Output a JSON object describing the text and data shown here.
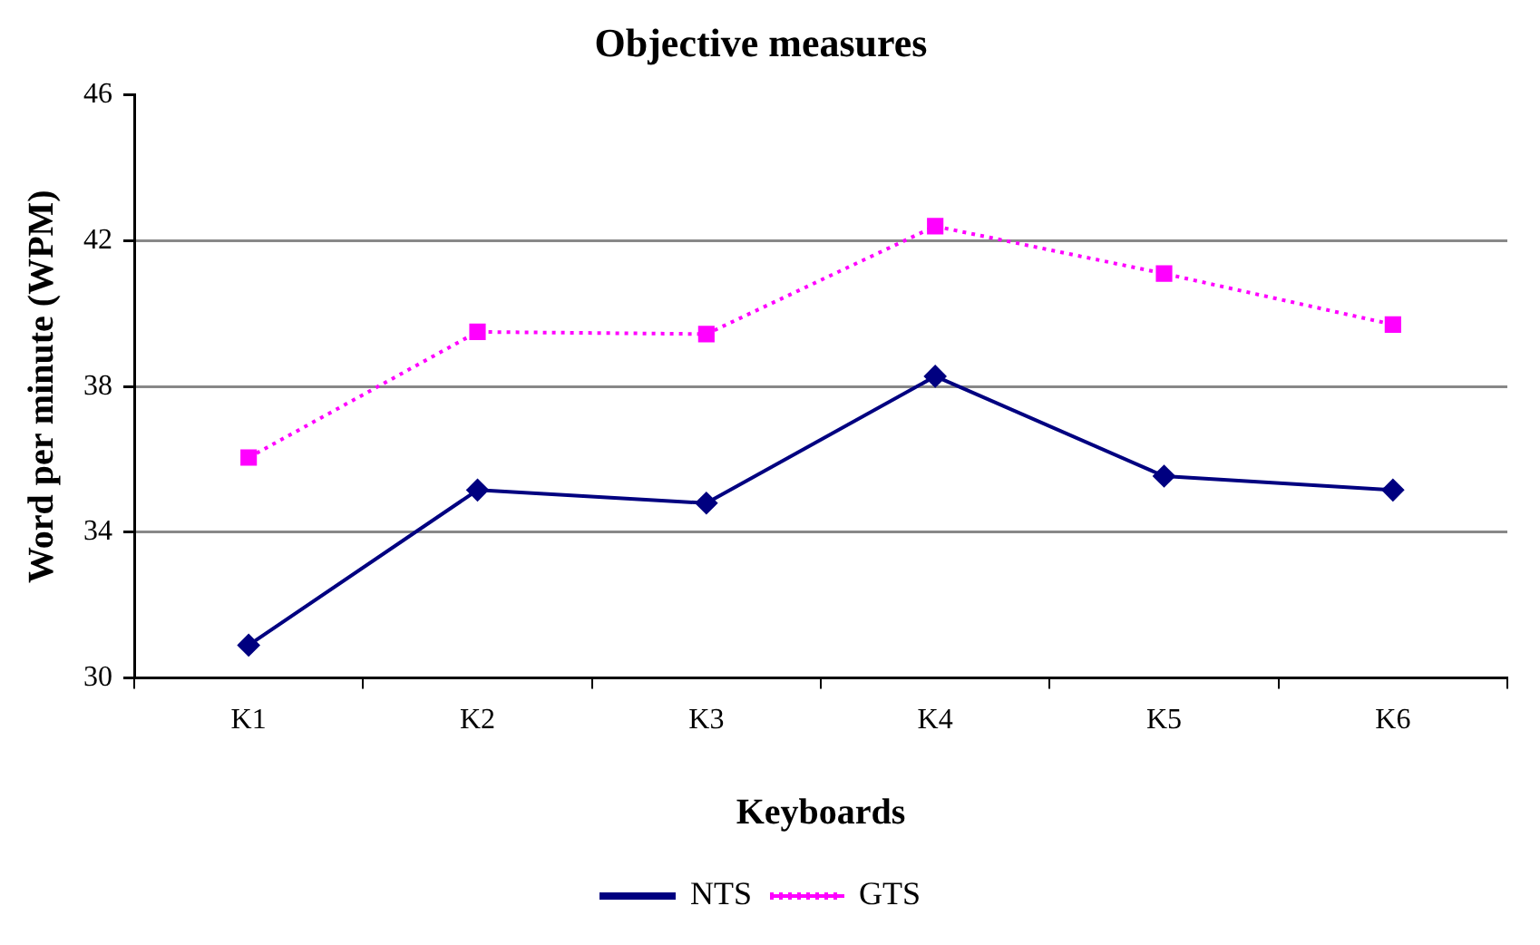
{
  "chart_data": {
    "type": "line",
    "title": "Objective measures",
    "xlabel": "Keyboards",
    "ylabel": "Word per minute (WPM)",
    "categories": [
      "K1",
      "K2",
      "K3",
      "K4",
      "K5",
      "K6"
    ],
    "series": [
      {
        "name": "NTS",
        "color": "#000080",
        "values": [
          30.9,
          35.16,
          34.8,
          38.28,
          35.54,
          35.16
        ],
        "marker": "diamond",
        "line_style": "solid"
      },
      {
        "name": "GTS",
        "color": "#ff00ff",
        "values": [
          36.05,
          39.5,
          39.44,
          42.4,
          41.1,
          39.7
        ],
        "marker": "square",
        "line_style": "dotted"
      }
    ],
    "ylim": [
      30,
      46
    ],
    "yticks": [
      30,
      34,
      38,
      42,
      46
    ],
    "grid": "y",
    "legend": "bottom"
  }
}
